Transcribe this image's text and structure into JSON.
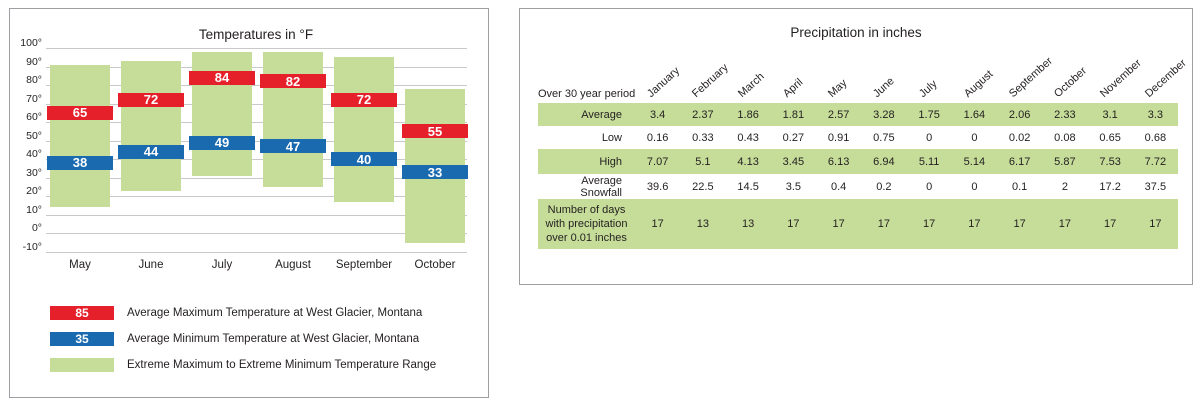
{
  "colors": {
    "red": "#e5202b",
    "blue": "#1a6ab0",
    "green": "#c6dd99",
    "gridline": "#c9c9c9",
    "text": "#231f20",
    "panel_border": "#9d9fa2"
  },
  "temperature_panel": {
    "legend": [
      {
        "swatch_label": "85",
        "swatch_color": "red",
        "text": "Average Maximum Temperature at West Glacier, Montana"
      },
      {
        "swatch_label": "35",
        "swatch_color": "blue",
        "text": "Average Minimum Temperature at West Glacier, Montana"
      },
      {
        "swatch_label": "",
        "swatch_color": "green",
        "text": "Extreme Maximum to Extreme Minimum Temperature Range"
      }
    ]
  },
  "chart_data": [
    {
      "type": "bar",
      "title": "Temperatures in °F",
      "categories": [
        "May",
        "June",
        "July",
        "August",
        "September",
        "October"
      ],
      "series": [
        {
          "name": "Average Maximum Temperature at West Glacier, Montana",
          "role": "avg_max",
          "color": "red",
          "values": [
            65,
            72,
            84,
            82,
            72,
            55
          ]
        },
        {
          "name": "Average Minimum Temperature at West Glacier, Montana",
          "role": "avg_min",
          "color": "blue",
          "values": [
            38,
            44,
            49,
            47,
            40,
            33
          ]
        },
        {
          "name": "Extreme Maximum Temperature",
          "role": "extreme_max",
          "color": "green",
          "values": [
            91,
            93,
            98,
            98,
            95,
            78
          ]
        },
        {
          "name": "Extreme Minimum Temperature",
          "role": "extreme_min",
          "color": "green",
          "values": [
            14,
            23,
            31,
            25,
            17,
            -5
          ]
        }
      ],
      "ylim": [
        -10,
        100
      ],
      "ytick_step": 10,
      "ytick_suffix": "°",
      "grid": true,
      "legend_position": "bottom"
    },
    {
      "type": "table",
      "title": "Precipitation in inches",
      "row_header": "Over 30 year period",
      "columns": [
        "January",
        "February",
        "March",
        "April",
        "May",
        "June",
        "July",
        "August",
        "September",
        "October",
        "November",
        "December"
      ],
      "rows": [
        {
          "label": "Average",
          "shaded": true,
          "values": [
            "3.4",
            "2.37",
            "1.86",
            "1.81",
            "2.57",
            "3.28",
            "1.75",
            "1.64",
            "2.06",
            "2.33",
            "3.1",
            "3.3"
          ]
        },
        {
          "label": "Low",
          "shaded": false,
          "values": [
            "0.16",
            "0.33",
            "0.43",
            "0.27",
            "0.91",
            "0.75",
            "0",
            "0",
            "0.02",
            "0.08",
            "0.65",
            "0.68"
          ]
        },
        {
          "label": "High",
          "shaded": true,
          "values": [
            "7.07",
            "5.1",
            "4.13",
            "3.45",
            "6.13",
            "6.94",
            "5.11",
            "5.14",
            "6.17",
            "5.87",
            "7.53",
            "7.72"
          ]
        },
        {
          "label": "Average Snowfall",
          "shaded": false,
          "values": [
            "39.6",
            "22.5",
            "14.5",
            "3.5",
            "0.4",
            "0.2",
            "0",
            "0",
            "0.1",
            "2",
            "17.2",
            "37.5"
          ]
        },
        {
          "label": "Number of days with precipitation over 0.01 inches",
          "shaded": true,
          "values": [
            "17",
            "13",
            "13",
            "17",
            "17",
            "17",
            "17",
            "17",
            "17",
            "17",
            "17",
            "17"
          ]
        }
      ]
    }
  ]
}
